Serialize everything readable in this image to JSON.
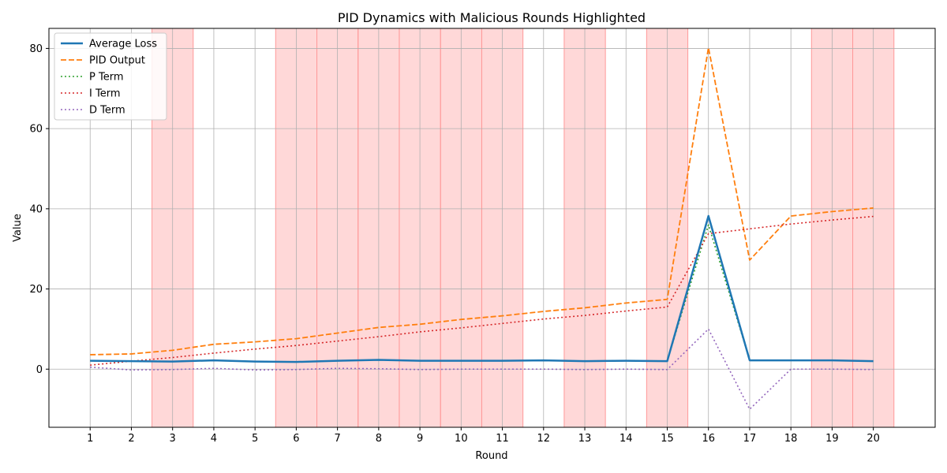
{
  "chart_data": {
    "type": "line",
    "title": "PID Dynamics with Malicious Rounds Highlighted",
    "xlabel": "Round",
    "ylabel": "Value",
    "x": [
      1,
      2,
      3,
      4,
      5,
      6,
      7,
      8,
      9,
      10,
      11,
      12,
      13,
      14,
      15,
      16,
      17,
      18,
      19,
      20
    ],
    "xlim": [
      0.0,
      21.5
    ],
    "ylim": [
      -14.5,
      85
    ],
    "yticks": [
      0,
      20,
      40,
      60,
      80
    ],
    "grid": true,
    "legend_position": "upper-left",
    "malicious_rounds": [
      3,
      6,
      7,
      8,
      9,
      10,
      11,
      13,
      15,
      19,
      20
    ],
    "highlight_color": "#ff9999",
    "series": [
      {
        "name": "Average Loss",
        "color": "#1f77b4",
        "style": "solid",
        "width": 2.5,
        "values": [
          2.1,
          2.0,
          1.9,
          2.2,
          1.9,
          1.8,
          2.1,
          2.3,
          2.1,
          2.1,
          2.1,
          2.2,
          2.0,
          2.1,
          2.0,
          38.2,
          2.2,
          2.2,
          2.2,
          2.0
        ]
      },
      {
        "name": "PID Output",
        "color": "#ff7f0e",
        "style": "dashed",
        "width": 1.8,
        "values": [
          3.6,
          3.8,
          4.7,
          6.2,
          6.8,
          7.6,
          9.0,
          10.4,
          11.2,
          12.4,
          13.3,
          14.4,
          15.3,
          16.5,
          17.4,
          80.2,
          27.2,
          38.2,
          39.3,
          40.2
        ]
      },
      {
        "name": "P Term",
        "color": "#2ca02c",
        "style": "dotted",
        "width": 1.6,
        "values": [
          2.1,
          2.0,
          1.9,
          2.2,
          1.9,
          1.8,
          2.1,
          2.3,
          2.1,
          2.1,
          2.1,
          2.2,
          2.0,
          2.1,
          2.0,
          36.0,
          2.2,
          2.2,
          2.2,
          2.0
        ]
      },
      {
        "name": "I Term",
        "color": "#d62728",
        "style": "dotted",
        "width": 1.6,
        "values": [
          1.0,
          2.0,
          2.9,
          4.0,
          5.0,
          5.9,
          7.0,
          8.1,
          9.3,
          10.3,
          11.4,
          12.5,
          13.4,
          14.5,
          15.5,
          33.8,
          35.0,
          36.2,
          37.2,
          38.1
        ]
      },
      {
        "name": "D Term",
        "color": "#9467bd",
        "style": "dotted",
        "width": 1.6,
        "values": [
          0.5,
          -0.2,
          -0.1,
          0.2,
          -0.2,
          -0.1,
          0.2,
          0.1,
          -0.1,
          0.0,
          0.0,
          0.0,
          -0.1,
          0.0,
          -0.1,
          10.0,
          -10.0,
          0.0,
          0.0,
          -0.1
        ]
      }
    ]
  }
}
